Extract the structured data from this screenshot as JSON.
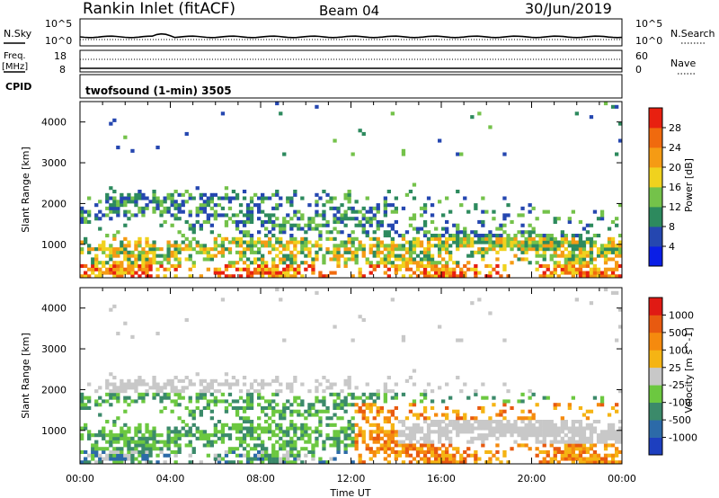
{
  "header": {
    "station": "Rankin Inlet (fitACF)",
    "beam": "Beam 04",
    "date": "30/Jun/2019"
  },
  "noise_panel": {
    "left_label": "N.Sky",
    "right_label": "N.Search",
    "left_ticks": [
      "10^5",
      "10^0"
    ],
    "right_ticks": [
      "10^5",
      "10^0"
    ]
  },
  "freq_panel": {
    "left_label_line1": "Freq.",
    "left_label_line2": "[MHz]",
    "right_label": "Nave",
    "left_ticks": [
      "18",
      "8"
    ],
    "right_ticks": [
      "60",
      "0"
    ],
    "cpid_label": "CPID",
    "cpid_text": "twofsound (1-min) 3505"
  },
  "chart_data": [
    {
      "type": "heatmap",
      "name_printed": "",
      "ylabel": "Slant Range [km]",
      "xlabel": "",
      "yticks": [
        1000,
        2000,
        3000,
        4000
      ],
      "ylim": [
        180,
        4500
      ],
      "xlim_hours": [
        0,
        24
      ],
      "colorbar_label": "Power [dB]",
      "colorbar_ticks": [
        "4",
        "8",
        "12",
        "16",
        "20",
        "24",
        "28"
      ],
      "colorbar_colors": [
        "#0a1ee6",
        "#2547b0",
        "#2d8a5e",
        "#74c24a",
        "#f0d21e",
        "#f59b14",
        "#f06a0e",
        "#e82010"
      ]
    },
    {
      "type": "heatmap",
      "ylabel": "Slant Range [km]",
      "xlabel": "Time UT",
      "yticks": [
        1000,
        2000,
        3000,
        4000
      ],
      "ylim": [
        180,
        4500
      ],
      "xlim_hours": [
        0,
        24
      ],
      "xtick_labels": [
        "00:00",
        "04:00",
        "08:00",
        "12:00",
        "16:00",
        "20:00",
        "00:00"
      ],
      "colorbar_label": "Velocity [m s^-1]",
      "colorbar_ticks": [
        "1000",
        "500",
        "100",
        "25",
        "-25",
        "-100",
        "-500",
        "-1000"
      ],
      "colorbar_colors": [
        "#1d3fbf",
        "#2c6aa8",
        "#3b8a6a",
        "#6cc840",
        "#c8c8c8",
        "#f5b414",
        "#f58a0e",
        "#e85a10",
        "#e01a14"
      ]
    }
  ]
}
